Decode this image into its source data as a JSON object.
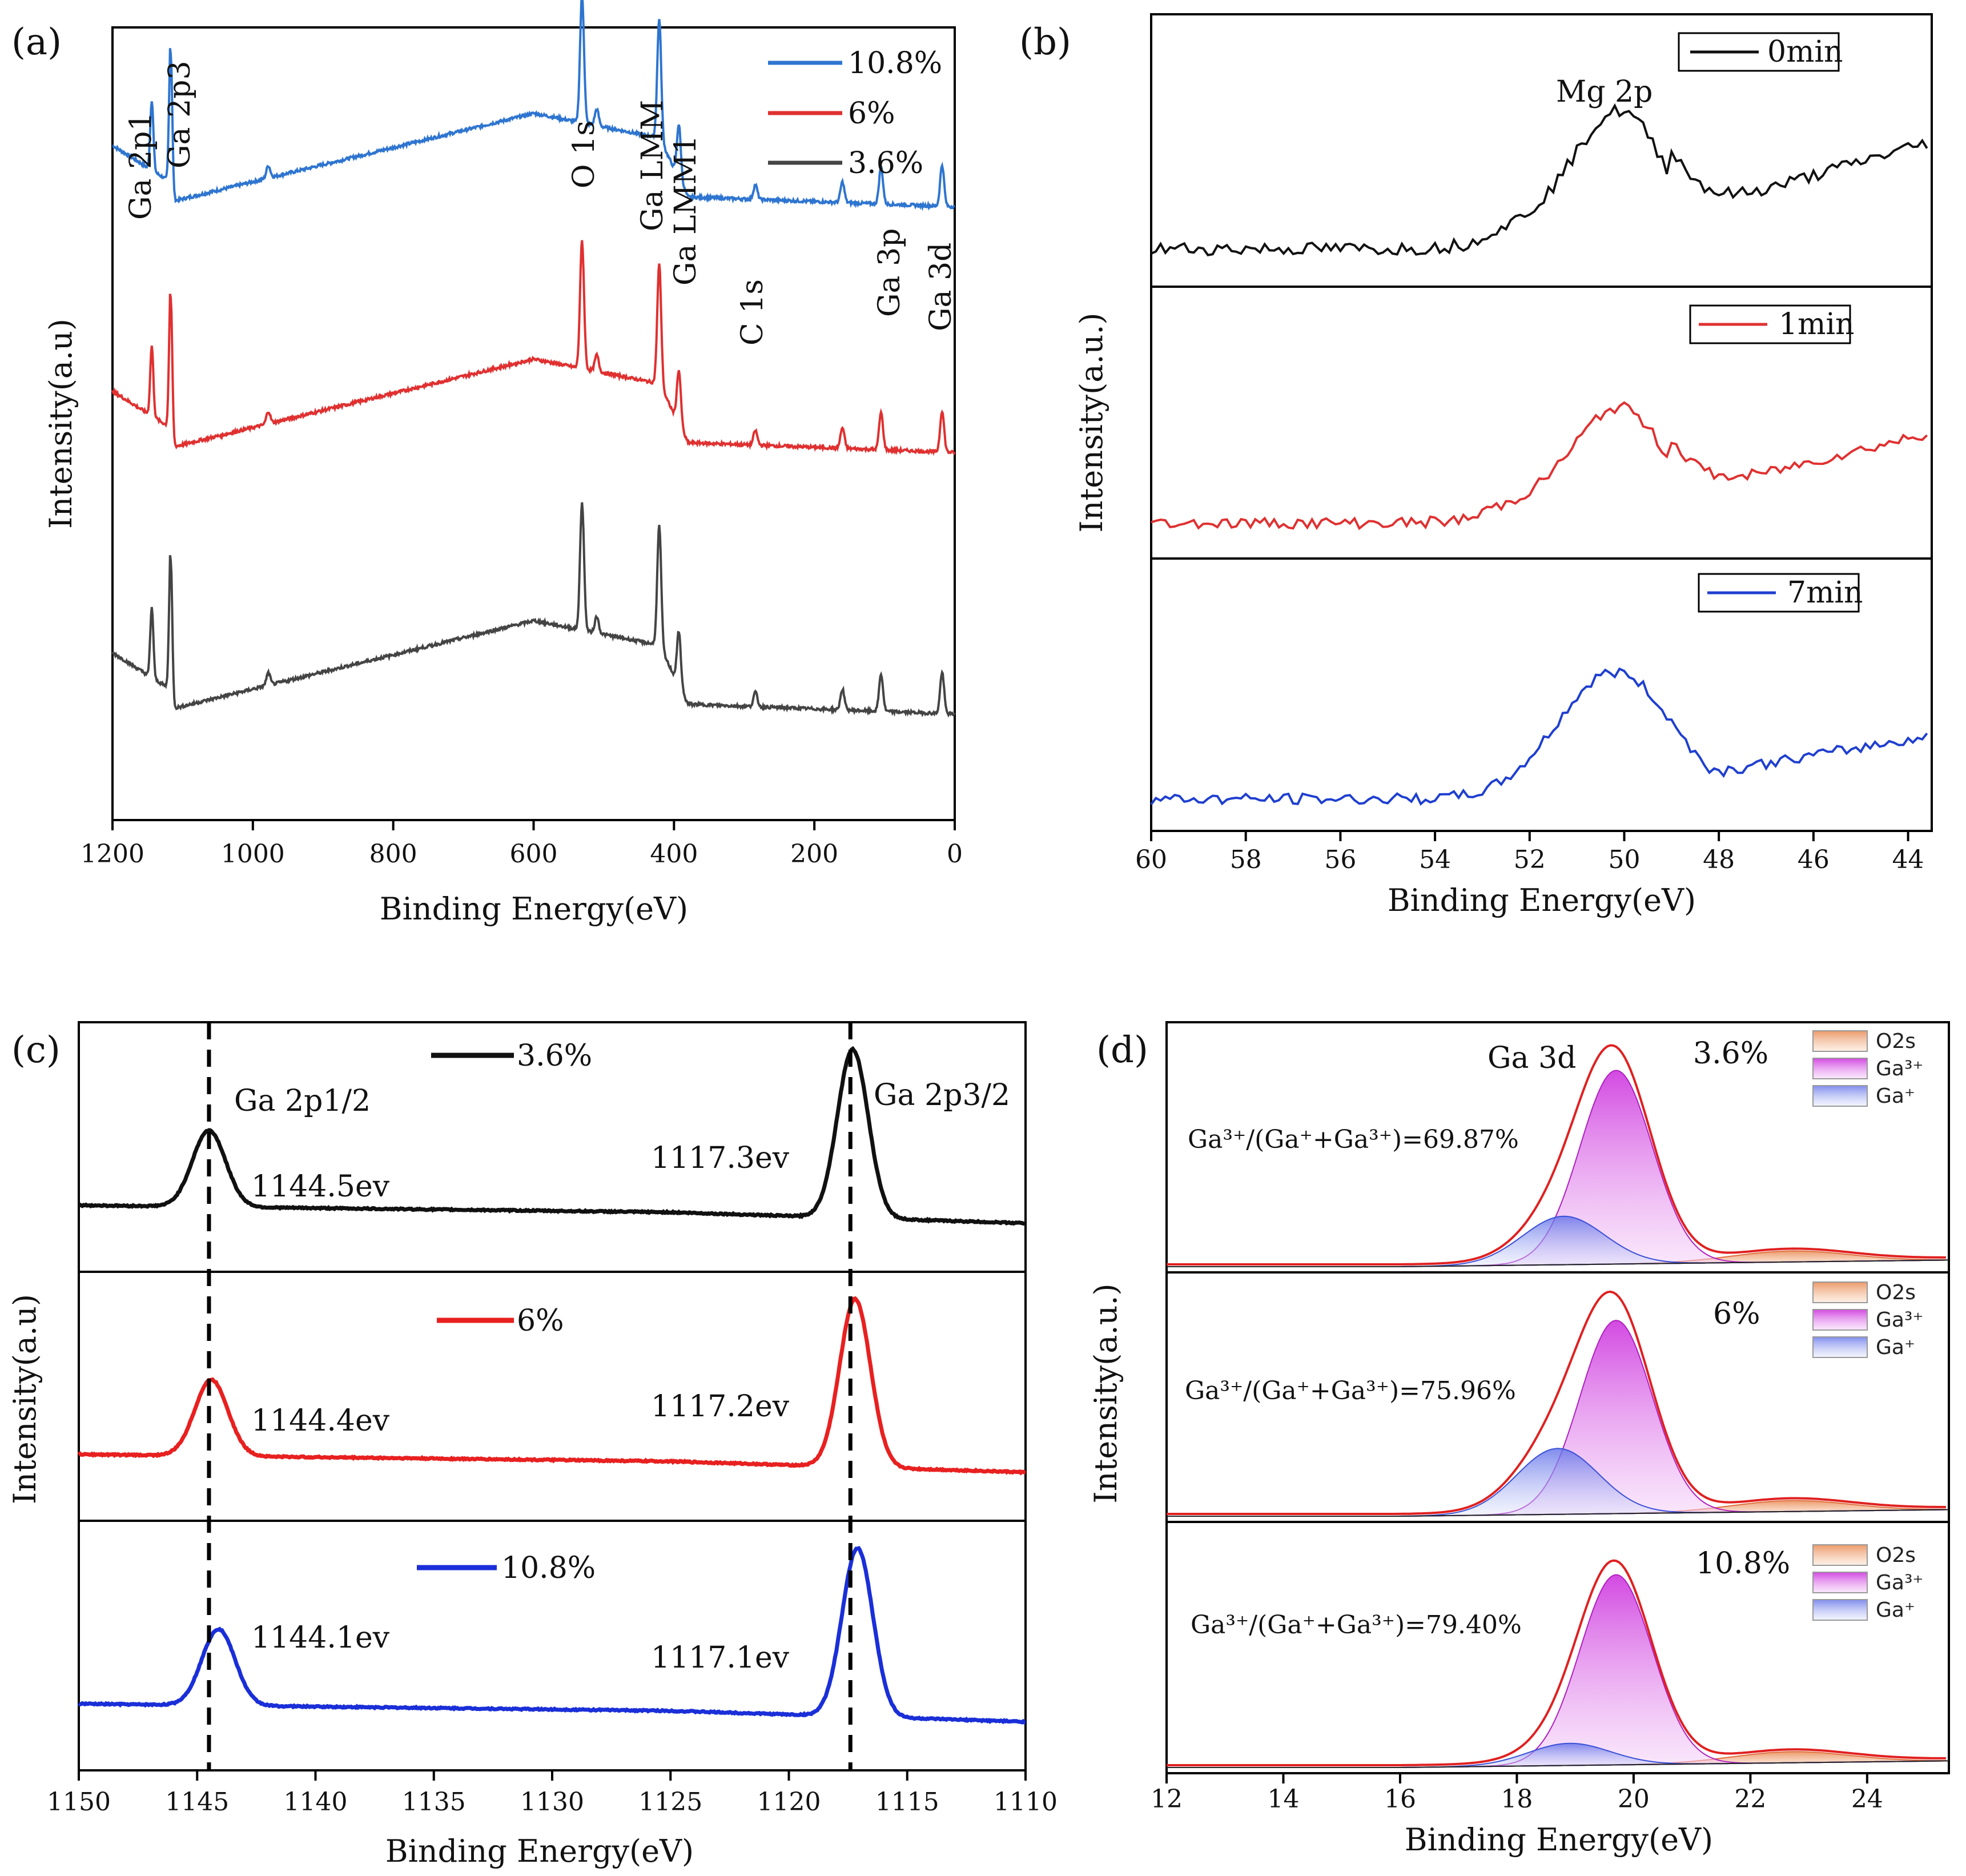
{
  "chart_data": [
    {
      "panel": "(a)",
      "type": "line",
      "xlabel": "Binding Energy(eV)",
      "ylabel": "Intensity(a.u)",
      "xlim": [
        1200,
        0
      ],
      "x_ticks": [
        "1200",
        "1000",
        "800",
        "600",
        "400",
        "200",
        "0"
      ],
      "legend": [
        {
          "name": "10.8%",
          "color": "#2e75d0"
        },
        {
          "name": "6%",
          "color": "#e03030"
        },
        {
          "name": "3.6%",
          "color": "#444444"
        }
      ],
      "annotations": [
        "Ga 2p1",
        "Ga 2p3",
        "O 1s",
        "Ga LMM",
        "Ga LMM1",
        "C 1s",
        "Ga 3p",
        "Ga 3d"
      ],
      "peaks": [
        {
          "x": 1144,
          "h": 0.34
        },
        {
          "x": 1117,
          "h": 0.72
        },
        {
          "x": 978,
          "h": 0.06
        },
        {
          "x": 531,
          "h": 0.62
        },
        {
          "x": 510,
          "h": 0.08
        },
        {
          "x": 421,
          "h": 0.58
        },
        {
          "x": 393,
          "h": 0.26
        },
        {
          "x": 284,
          "h": 0.07
        },
        {
          "x": 160,
          "h": 0.1
        },
        {
          "x": 105,
          "h": 0.18
        },
        {
          "x": 18,
          "h": 0.2
        }
      ],
      "series": [
        {
          "name": "10.8%",
          "offset": 0.78
        },
        {
          "name": "6%",
          "offset": 0.47
        },
        {
          "name": "3.6%",
          "offset": 0.14
        }
      ]
    },
    {
      "panel": "(b)",
      "type": "line",
      "xlabel": "Binding Energy(eV)",
      "ylabel": "Intensity(a.u.)",
      "xlim": [
        60,
        43.5
      ],
      "x_ticks": [
        "60",
        "58",
        "56",
        "54",
        "52",
        "50",
        "48",
        "46",
        "44"
      ],
      "annotation": "Mg 2p",
      "series": [
        {
          "name": "0min",
          "color": "#111111"
        },
        {
          "name": "1min",
          "color": "#e03030"
        },
        {
          "name": "7min",
          "color": "#1f3fd0"
        }
      ]
    },
    {
      "panel": "(c)",
      "type": "line",
      "xlabel": "Binding Energy(eV)",
      "ylabel": "Intensity(a.u)",
      "xlim": [
        1150,
        1110
      ],
      "x_ticks": [
        "1150",
        "1145",
        "1140",
        "1135",
        "1130",
        "1125",
        "1120",
        "1115",
        "1110"
      ],
      "labels": [
        "Ga 2p1/2",
        "Ga 2p3/2"
      ],
      "dashed_lines_x": [
        1144.5,
        1117.4
      ],
      "series": [
        {
          "name": "3.6%",
          "color": "#111111",
          "peak1": 1144.5,
          "peak2": 1117.3,
          "peak1_label": "1144.5ev",
          "peak2_label": "1117.3ev"
        },
        {
          "name": "6%",
          "color": "#e82020",
          "peak1": 1144.4,
          "peak2": 1117.2,
          "peak1_label": "1144.4ev",
          "peak2_label": "1117.2ev"
        },
        {
          "name": "10.8%",
          "color": "#1a2fd8",
          "peak1": 1144.1,
          "peak2": 1117.1,
          "peak1_label": "1144.1ev",
          "peak2_label": "1117.1ev"
        }
      ]
    },
    {
      "panel": "(d)",
      "type": "area",
      "xlabel": "Binding Energy(eV)",
      "ylabel": "Intensity(a.u.)",
      "xlim": [
        12,
        25.4
      ],
      "x_ticks": [
        "12",
        "14",
        "16",
        "18",
        "20",
        "22",
        "24"
      ],
      "title_label": "Ga 3d",
      "legend": [
        {
          "name": "O2s",
          "color": "#f0a070"
        },
        {
          "name": "Ga³⁺",
          "color": "#e070f0"
        },
        {
          "name": "Ga⁺",
          "color": "#8090f0"
        }
      ],
      "subplots": [
        {
          "name": "3.6%",
          "ratio_label": "Ga³⁺/(Ga⁺+Ga³⁺)=69.87%",
          "ga3_center": 19.7,
          "ga3_h": 0.88,
          "ga1_center": 18.8,
          "ga1_h": 0.22,
          "o2s_h": 0.05
        },
        {
          "name": "6%",
          "ratio_label": "Ga³⁺/(Ga⁺+Ga³⁺)=75.96%",
          "ga3_center": 19.7,
          "ga3_h": 0.88,
          "ga1_center": 18.7,
          "ga1_h": 0.3,
          "o2s_h": 0.05
        },
        {
          "name": "10.8%",
          "ratio_label": "Ga³⁺/(Ga⁺+Ga³⁺)=79.40%",
          "ga3_center": 19.7,
          "ga3_h": 0.86,
          "ga1_center": 18.9,
          "ga1_h": 0.1,
          "o2s_h": 0.05
        }
      ]
    }
  ]
}
